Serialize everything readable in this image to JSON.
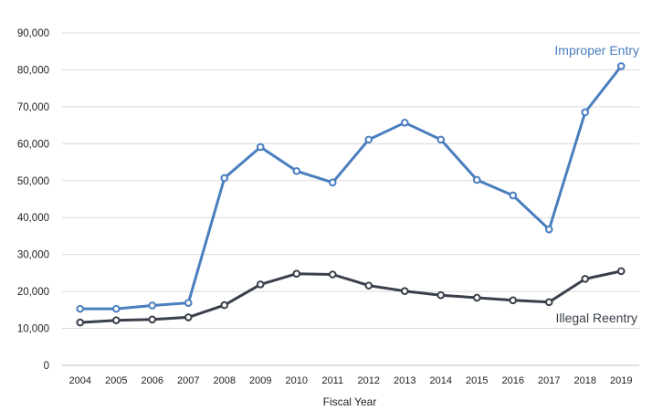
{
  "chart_data": {
    "type": "line",
    "title": "",
    "xlabel": "Fiscal Year",
    "ylabel": "",
    "categories": [
      "2004",
      "2005",
      "2006",
      "2007",
      "2008",
      "2009",
      "2010",
      "2011",
      "2012",
      "2013",
      "2014",
      "2015",
      "2016",
      "2017",
      "2018",
      "2019"
    ],
    "ylim": [
      0,
      90000
    ],
    "yticks": [
      0,
      10000,
      20000,
      30000,
      40000,
      50000,
      60000,
      70000,
      80000,
      90000
    ],
    "ytick_labels": [
      "0",
      "10,000",
      "20,000",
      "30,000",
      "40,000",
      "50,000",
      "60,000",
      "70,000",
      "80,000",
      "90,000"
    ],
    "grid": true,
    "legend": "direct labels at series ends",
    "series": [
      {
        "name": "Improper Entry",
        "color": "#4a7ebf",
        "values": [
          15300,
          15300,
          16200,
          16900,
          50700,
          59100,
          52600,
          49500,
          61100,
          65700,
          61100,
          50200,
          46000,
          36800,
          68500,
          81000
        ]
      },
      {
        "name": "Illegal Reentry",
        "color": "#3a404b",
        "values": [
          11600,
          12200,
          12400,
          13000,
          16300,
          21900,
          24800,
          24600,
          21600,
          20100,
          19000,
          18300,
          17600,
          17100,
          23400,
          25500
        ]
      }
    ]
  }
}
